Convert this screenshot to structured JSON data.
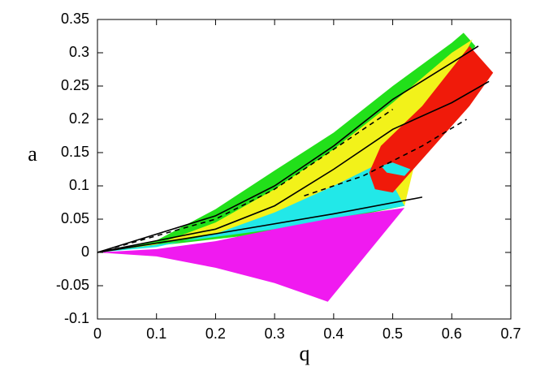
{
  "chart_data": {
    "type": "region",
    "xlabel": "q",
    "ylabel": "a",
    "xlim": [
      0,
      0.7
    ],
    "ylim": [
      -0.1,
      0.35
    ],
    "xticks": [
      0,
      0.1,
      0.2,
      0.3,
      0.4,
      0.5,
      0.6,
      0.7
    ],
    "yticks": [
      -0.1,
      -0.05,
      0,
      0.05,
      0.1,
      0.15,
      0.2,
      0.25,
      0.3,
      0.35
    ],
    "regions": [
      {
        "color": "#22e01a",
        "x": [
          0,
          0.1,
          0.2,
          0.3,
          0.4,
          0.5,
          0.6,
          0.62,
          0.64,
          0.55,
          0.52,
          0.3,
          0
        ],
        "y": [
          0,
          0.018,
          0.065,
          0.123,
          0.18,
          0.25,
          0.315,
          0.33,
          0.31,
          0.2,
          0.07,
          0.03,
          0
        ]
      },
      {
        "color": "#f2f21a",
        "x": [
          0,
          0.1,
          0.2,
          0.3,
          0.4,
          0.5,
          0.6,
          0.635,
          0.55,
          0.52,
          0
        ],
        "y": [
          0,
          0.012,
          0.045,
          0.095,
          0.155,
          0.225,
          0.3,
          0.32,
          0.18,
          0.07,
          0
        ]
      },
      {
        "color": "#22e8e8",
        "x": [
          0,
          0.1,
          0.2,
          0.3,
          0.4,
          0.48,
          0.52,
          0.3,
          0
        ],
        "y": [
          0,
          0.008,
          0.028,
          0.06,
          0.1,
          0.135,
          0.07,
          0.035,
          0
        ]
      },
      {
        "color": "#f01af0",
        "x": [
          0,
          0.1,
          0.2,
          0.3,
          0.4,
          0.52,
          0.39,
          0.3,
          0.2,
          0.1,
          0
        ],
        "y": [
          0,
          0.005,
          0.017,
          0.035,
          0.052,
          0.067,
          -0.074,
          -0.046,
          -0.023,
          -0.006,
          0
        ]
      },
      {
        "color": "#f01a0a",
        "x": [
          0.46,
          0.48,
          0.55,
          0.63,
          0.645,
          0.67,
          0.63,
          0.58,
          0.53,
          0.5,
          0.47,
          0.46
        ],
        "y": [
          0.12,
          0.16,
          0.22,
          0.31,
          0.295,
          0.27,
          0.22,
          0.17,
          0.12,
          0.09,
          0.095,
          0.12
        ]
      },
      {
        "color": "#22e8e8",
        "x": [
          0.48,
          0.5,
          0.53,
          0.52,
          0.49
        ],
        "y": [
          0.13,
          0.135,
          0.125,
          0.115,
          0.12
        ]
      }
    ],
    "lines": [
      {
        "color": "#000000",
        "dashed": false,
        "x": [
          0,
          0.2,
          0.4,
          0.55
        ],
        "y": [
          0,
          0.028,
          0.058,
          0.083
        ]
      },
      {
        "color": "#000000",
        "dashed": false,
        "x": [
          0,
          0.2,
          0.3,
          0.4,
          0.5,
          0.6,
          0.663
        ],
        "y": [
          0,
          0.035,
          0.07,
          0.125,
          0.185,
          0.225,
          0.257
        ]
      },
      {
        "color": "#000000",
        "dashed": false,
        "x": [
          0,
          0.2,
          0.3,
          0.4,
          0.5,
          0.6,
          0.645
        ],
        "y": [
          0,
          0.055,
          0.1,
          0.16,
          0.23,
          0.285,
          0.31
        ]
      },
      {
        "color": "#000000",
        "dashed": true,
        "x": [
          0,
          0.2,
          0.3,
          0.4,
          0.5
        ],
        "y": [
          0,
          0.05,
          0.095,
          0.155,
          0.215
        ]
      },
      {
        "color": "#000000",
        "dashed": true,
        "x": [
          0.35,
          0.45,
          0.55,
          0.625
        ],
        "y": [
          0.085,
          0.115,
          0.16,
          0.2
        ]
      }
    ]
  }
}
